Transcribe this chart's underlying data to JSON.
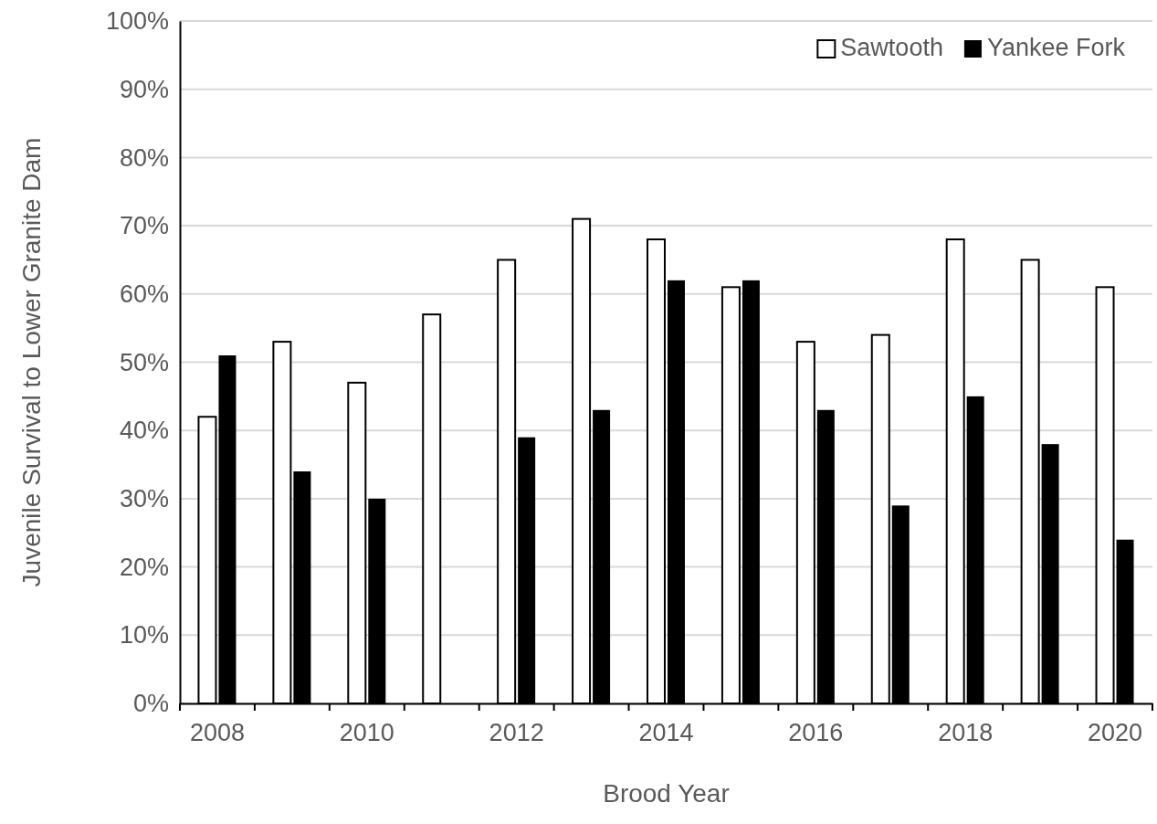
{
  "chart_data": {
    "type": "bar",
    "xlabel": "Brood Year",
    "ylabel": "Juvenile Survival to Lower Granite Dam",
    "categories": [
      "2008",
      null,
      "2010",
      null,
      "2012",
      null,
      "2014",
      null,
      "2016",
      null,
      "2018",
      null,
      "2020"
    ],
    "series": [
      {
        "name": "Sawtooth",
        "color": "#ffffff",
        "values": [
          42,
          53,
          47,
          57,
          65,
          71,
          68,
          61,
          53,
          54,
          68,
          65,
          61
        ]
      },
      {
        "name": "Yankee Fork",
        "color": "#000000",
        "values": [
          51,
          34,
          30,
          null,
          39,
          43,
          62,
          62,
          43,
          29,
          45,
          38,
          24
        ]
      }
    ],
    "ylim": [
      0,
      100
    ],
    "yticks": [
      {
        "value": 0,
        "label": "0%"
      },
      {
        "value": 10,
        "label": "10%"
      },
      {
        "value": 20,
        "label": "20%"
      },
      {
        "value": 30,
        "label": "30%"
      },
      {
        "value": 40,
        "label": "40%"
      },
      {
        "value": 50,
        "label": "50%"
      },
      {
        "value": 60,
        "label": "60%"
      },
      {
        "value": 70,
        "label": "70%"
      },
      {
        "value": 80,
        "label": "80%"
      },
      {
        "value": 90,
        "label": "90%"
      },
      {
        "value": 100,
        "label": "100%"
      }
    ],
    "grid": "y",
    "legend": "top right"
  }
}
